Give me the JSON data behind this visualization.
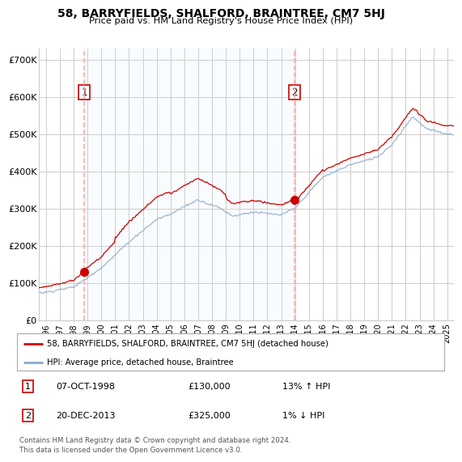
{
  "title": "58, BARRYFIELDS, SHALFORD, BRAINTREE, CM7 5HJ",
  "subtitle": "Price paid vs. HM Land Registry's House Price Index (HPI)",
  "ylabel_ticks": [
    "£0",
    "£100K",
    "£200K",
    "£300K",
    "£400K",
    "£500K",
    "£600K",
    "£700K"
  ],
  "ytick_values": [
    0,
    100000,
    200000,
    300000,
    400000,
    500000,
    600000,
    700000
  ],
  "ylim": [
    0,
    730000
  ],
  "xlim_start": 1995.5,
  "xlim_end": 2025.5,
  "xtick_years": [
    1996,
    1997,
    1998,
    1999,
    2000,
    2001,
    2002,
    2003,
    2004,
    2005,
    2006,
    2007,
    2008,
    2009,
    2010,
    2011,
    2012,
    2013,
    2014,
    2015,
    2016,
    2017,
    2018,
    2019,
    2020,
    2021,
    2022,
    2023,
    2024,
    2025
  ],
  "sale1_x": 1998.77,
  "sale1_y": 130000,
  "sale1_label": "1",
  "sale1_date": "07-OCT-1998",
  "sale1_price": "£130,000",
  "sale1_hpi": "13% ↑ HPI",
  "sale2_x": 2013.97,
  "sale2_y": 325000,
  "sale2_label": "2",
  "sale2_date": "20-DEC-2013",
  "sale2_price": "£325,000",
  "sale2_hpi": "1% ↓ HPI",
  "line_color_property": "#cc0000",
  "line_color_hpi": "#88aacc",
  "shade_color": "#ddeeff",
  "vline_color": "#ffaaaa",
  "grid_color": "#cccccc",
  "background_color": "#ffffff",
  "legend_label_property": "58, BARRYFIELDS, SHALFORD, BRAINTREE, CM7 5HJ (detached house)",
  "legend_label_hpi": "HPI: Average price, detached house, Braintree",
  "footer": "Contains HM Land Registry data © Crown copyright and database right 2024.\nThis data is licensed under the Open Government Licence v3.0."
}
